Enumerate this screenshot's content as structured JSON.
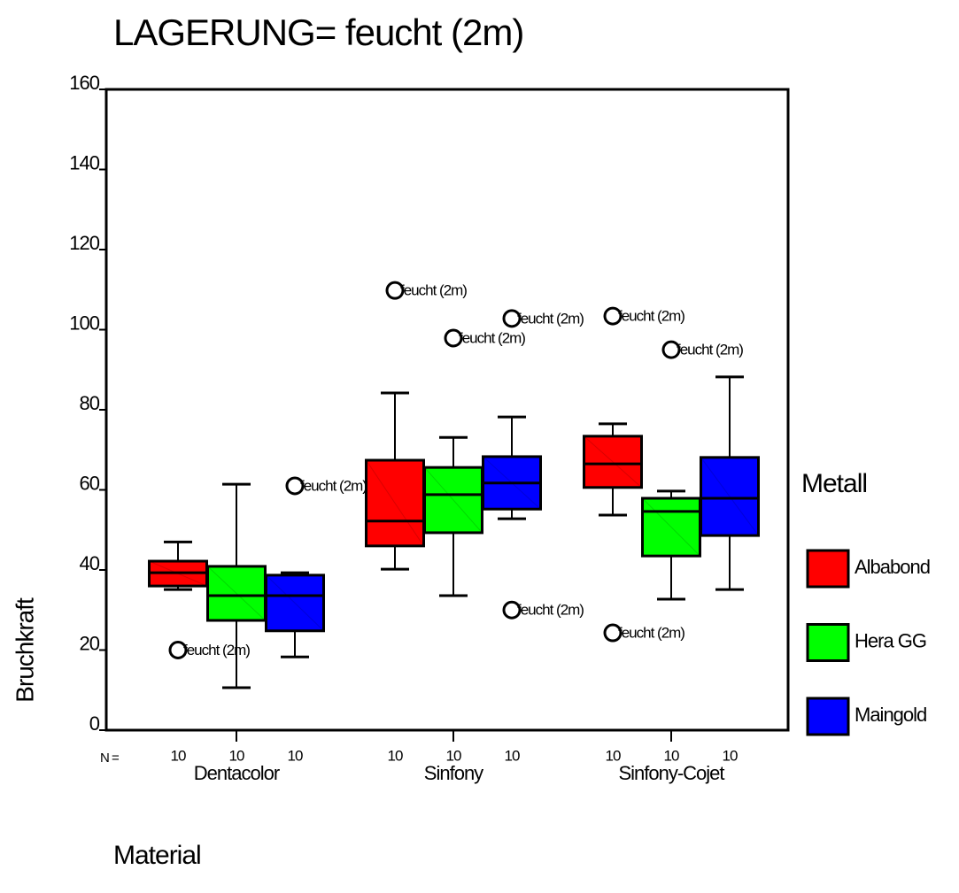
{
  "chart_data": {
    "type": "box",
    "title": "LAGERUNG= feucht (2m)",
    "y_label": "Bruchkraft",
    "x_label": "Material",
    "legend_title": "Metall",
    "legend_position": "right",
    "n_label": "N =",
    "categories": [
      "Dentacolor",
      "Sinfony",
      "Sinfony-Cojet"
    ],
    "ylim": [
      0,
      160
    ],
    "yticks": [
      0,
      20,
      40,
      60,
      80,
      100,
      120,
      140,
      160
    ],
    "series": [
      {
        "name": "Albabond",
        "color": "#ff0000",
        "whisker_low": [
          35.1,
          40.2,
          53.7
        ],
        "q1": [
          36,
          46,
          60.6
        ],
        "median": [
          39.3,
          52.2,
          66.5
        ],
        "q3": [
          42.2,
          67.4,
          73.4
        ],
        "whisker_high": [
          47,
          84.2,
          76.5
        ],
        "n": [
          10,
          10,
          10
        ],
        "outliers": [
          [
            20
          ],
          [
            109.8
          ],
          [
            103.4,
            24.3
          ]
        ],
        "outlier_labels": [
          [
            "feucht (2m)"
          ],
          [
            "feucht (2m)"
          ],
          [
            "feucht (2m)",
            "feucht (2m)"
          ]
        ]
      },
      {
        "name": "Hera GG",
        "color": "#00ff00",
        "whisker_low": [
          10.6,
          33.6,
          32.7
        ],
        "q1": [
          27.4,
          49.3,
          43.5
        ],
        "median": [
          33.6,
          58.8,
          54.6
        ],
        "q3": [
          40.9,
          65.6,
          57.9
        ],
        "whisker_high": [
          61.4,
          73.1,
          59.7
        ],
        "n": [
          10,
          10,
          10
        ],
        "outliers": [
          [],
          [
            97.9
          ],
          [
            95
          ]
        ],
        "outlier_labels": [
          [],
          [
            "feucht (2m)"
          ],
          [
            "feucht (2m)"
          ]
        ]
      },
      {
        "name": "Maingold",
        "color": "#0000ff",
        "whisker_low": [
          18.3,
          52.8,
          35.1
        ],
        "q1": [
          24.8,
          55.2,
          48.6
        ],
        "median": [
          33.6,
          61.7,
          57.9
        ],
        "q3": [
          38.7,
          68.3,
          68.1
        ],
        "whisker_high": [
          39.3,
          78.2,
          88.2
        ],
        "n": [
          10,
          10,
          10
        ],
        "outliers": [
          [
            61
          ],
          [
            102.8,
            30
          ],
          []
        ],
        "outlier_labels": [
          [
            "feucht (2m)"
          ],
          [
            "feucht (2m)",
            "feucht (2m)"
          ],
          []
        ]
      }
    ]
  }
}
